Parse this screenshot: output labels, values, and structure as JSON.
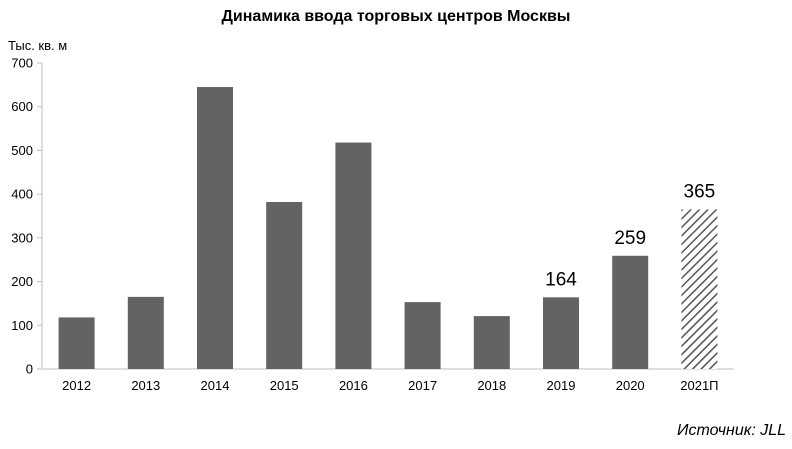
{
  "chart_data": {
    "type": "bar",
    "title": "Динамика ввода торговых центров Москвы",
    "ylabel": "Тыс. кв. м",
    "xlabel": "",
    "ylim": [
      0,
      700
    ],
    "yticks": [
      0,
      100,
      200,
      300,
      400,
      500,
      600,
      700
    ],
    "categories": [
      "2012",
      "2013",
      "2014",
      "2015",
      "2016",
      "2017",
      "2018",
      "2019",
      "2020",
      "2021П"
    ],
    "values": [
      118,
      165,
      645,
      382,
      518,
      153,
      121,
      164,
      259,
      365
    ],
    "data_labels": [
      "",
      "",
      "",
      "",
      "",
      "",
      "",
      "164",
      "259",
      "365"
    ],
    "forecast": [
      false,
      false,
      false,
      false,
      false,
      false,
      false,
      false,
      false,
      true
    ],
    "bar_color": "#636366",
    "forecast_hatch_color": "#555555",
    "axis_color": "#bfbfbf",
    "grid": false,
    "legend": "none"
  },
  "source": "Источник: JLL"
}
